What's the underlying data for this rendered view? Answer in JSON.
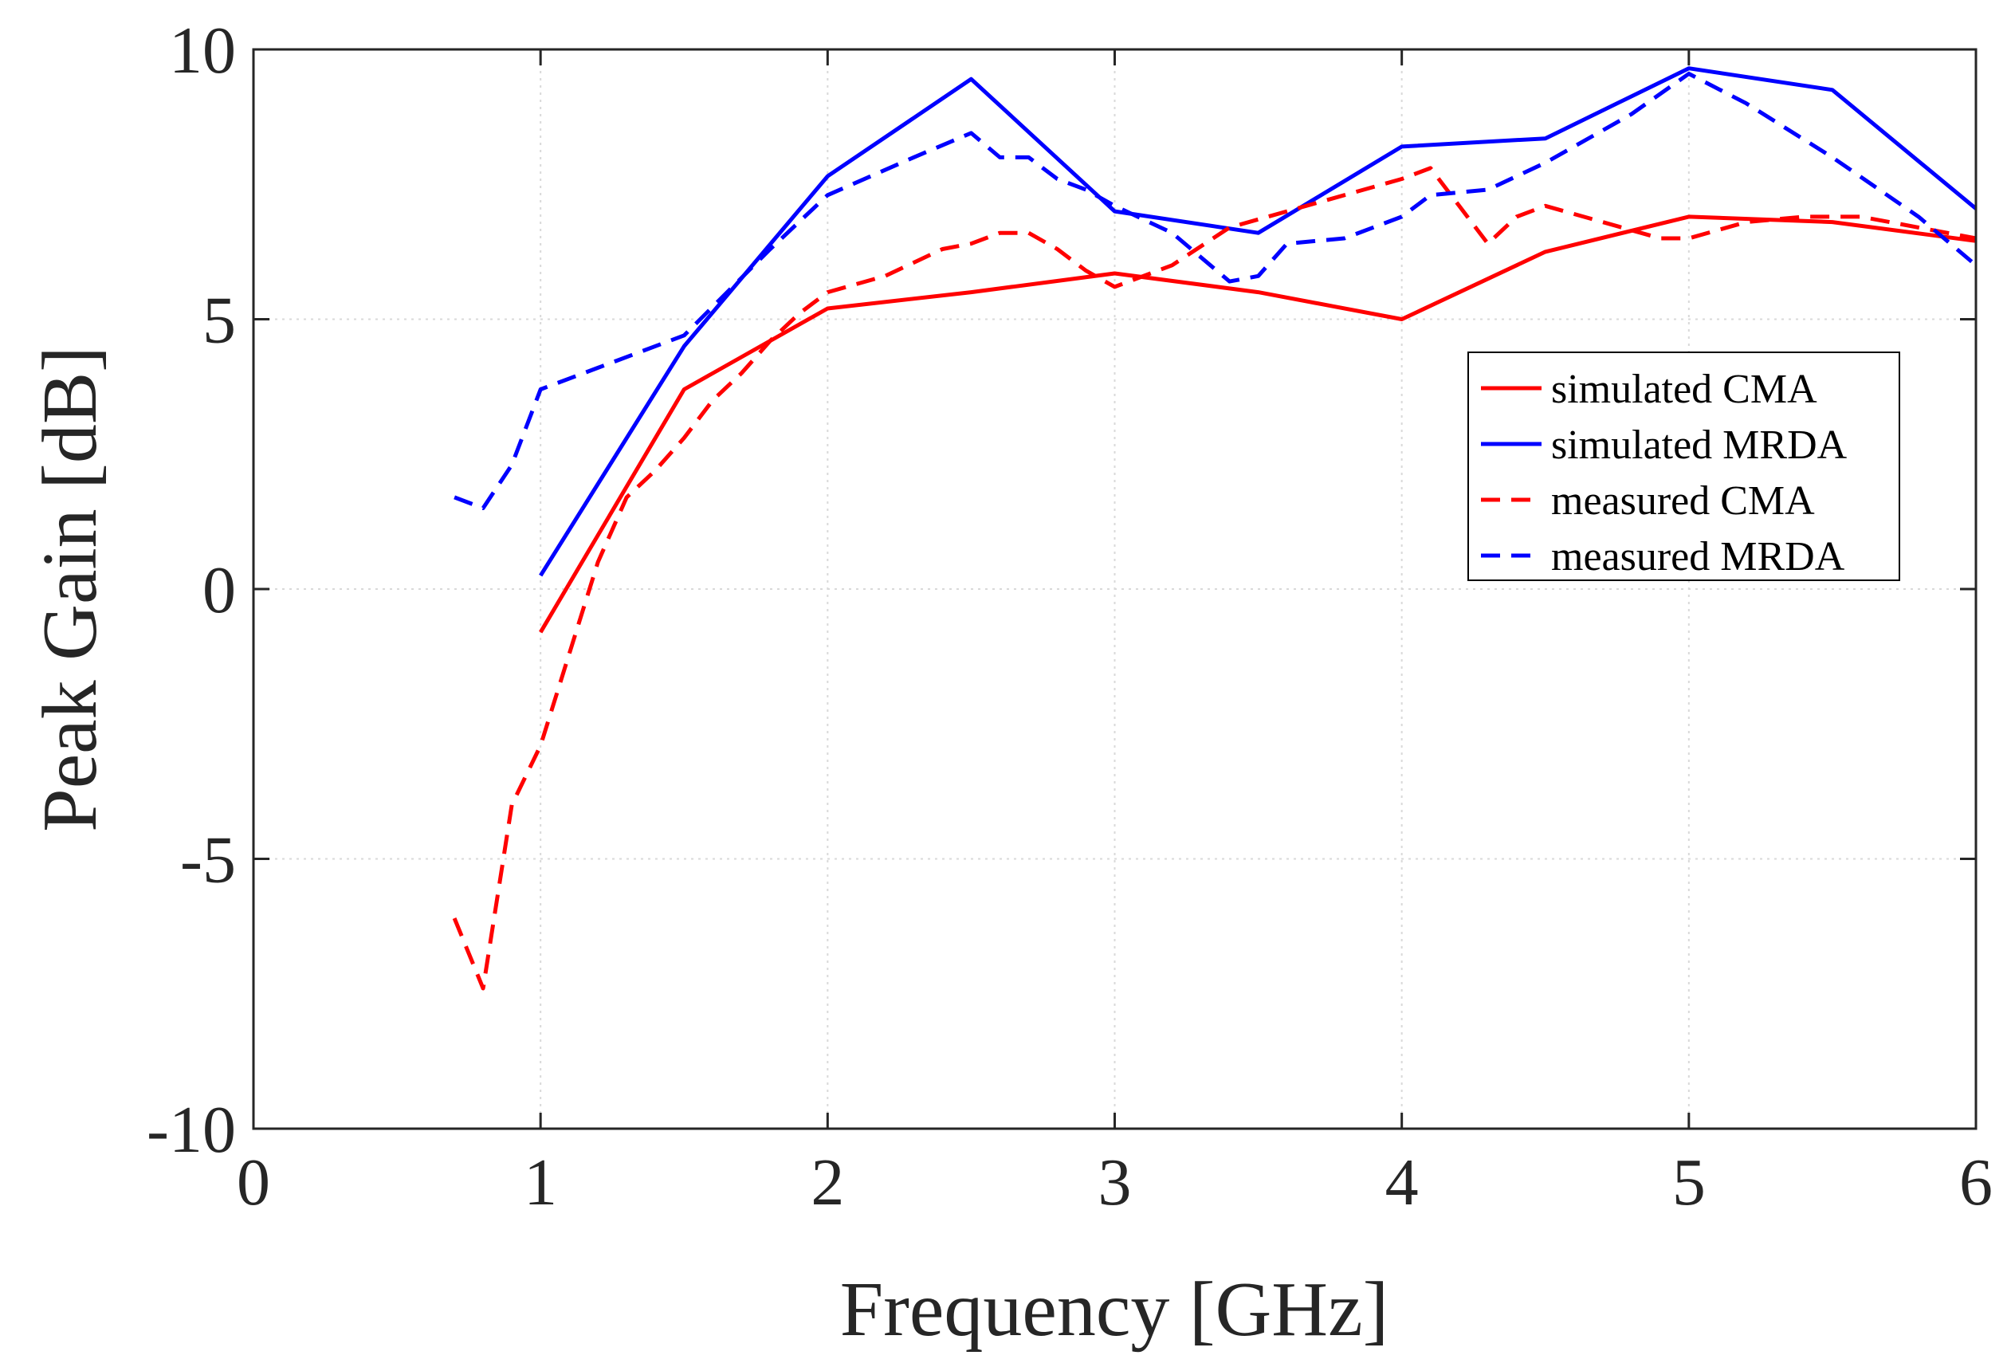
{
  "chart_data": {
    "type": "line",
    "title": "",
    "xlabel": "Frequency [GHz]",
    "ylabel": "Peak Gain [dB]",
    "xlim": [
      0,
      6
    ],
    "ylim": [
      -10,
      10
    ],
    "xticks": [
      0,
      1,
      2,
      3,
      4,
      5,
      6
    ],
    "yticks": [
      -10,
      -5,
      0,
      5,
      10
    ],
    "xtick_labels": [
      "0",
      "1",
      "2",
      "3",
      "4",
      "5",
      "6"
    ],
    "ytick_labels": [
      "-10",
      "-5",
      "0",
      "5",
      "10"
    ],
    "grid": true,
    "legend_position": "right, upper-middle",
    "series": [
      {
        "name": "simulated CMA",
        "color": "#ff0000",
        "style": "solid",
        "x": [
          1.0,
          1.5,
          2.0,
          2.5,
          3.0,
          3.5,
          4.0,
          4.5,
          5.0,
          5.5,
          6.0
        ],
        "y": [
          -0.8,
          3.7,
          5.2,
          5.5,
          5.85,
          5.5,
          5.0,
          6.25,
          6.9,
          6.8,
          6.45
        ]
      },
      {
        "name": "simulated MRDA",
        "color": "#0000ff",
        "style": "solid",
        "x": [
          1.0,
          1.5,
          2.0,
          2.5,
          3.0,
          3.5,
          4.0,
          4.5,
          5.0,
          5.5,
          6.0
        ],
        "y": [
          0.25,
          4.5,
          7.65,
          9.45,
          7.0,
          6.6,
          8.2,
          8.35,
          9.65,
          9.25,
          7.05
        ]
      },
      {
        "name": "measured CMA",
        "color": "#ff0000",
        "style": "dashed",
        "x": [
          0.7,
          0.8,
          0.9,
          1.0,
          1.1,
          1.2,
          1.3,
          1.4,
          1.5,
          1.6,
          1.7,
          1.8,
          1.9,
          2.0,
          2.2,
          2.4,
          2.5,
          2.6,
          2.7,
          2.8,
          2.9,
          3.0,
          3.2,
          3.4,
          3.6,
          3.8,
          4.0,
          4.1,
          4.2,
          4.3,
          4.4,
          4.5,
          4.7,
          4.9,
          5.0,
          5.2,
          5.4,
          5.6,
          5.8,
          6.0
        ],
        "y": [
          -6.1,
          -7.4,
          -4.0,
          -2.9,
          -1.2,
          0.5,
          1.7,
          2.2,
          2.8,
          3.5,
          4.0,
          4.6,
          5.1,
          5.5,
          5.8,
          6.3,
          6.4,
          6.6,
          6.6,
          6.3,
          5.9,
          5.6,
          6.0,
          6.7,
          7.0,
          7.3,
          7.6,
          7.8,
          7.1,
          6.4,
          6.9,
          7.1,
          6.8,
          6.5,
          6.5,
          6.8,
          6.9,
          6.9,
          6.7,
          6.5
        ]
      },
      {
        "name": "measured MRDA",
        "color": "#0000ff",
        "style": "dashed",
        "x": [
          0.7,
          0.8,
          0.9,
          1.0,
          1.2,
          1.5,
          1.8,
          2.0,
          2.3,
          2.5,
          2.6,
          2.7,
          2.8,
          2.9,
          3.0,
          3.2,
          3.4,
          3.5,
          3.6,
          3.8,
          4.0,
          4.1,
          4.3,
          4.5,
          4.8,
          5.0,
          5.2,
          5.5,
          5.8,
          6.0
        ],
        "y": [
          1.7,
          1.5,
          2.3,
          3.7,
          4.1,
          4.7,
          6.3,
          7.3,
          8.0,
          8.45,
          8.0,
          8.0,
          7.6,
          7.4,
          7.1,
          6.6,
          5.7,
          5.8,
          6.4,
          6.5,
          6.9,
          7.3,
          7.4,
          7.9,
          8.8,
          9.55,
          9.0,
          8.0,
          6.9,
          6.0
        ]
      }
    ]
  }
}
